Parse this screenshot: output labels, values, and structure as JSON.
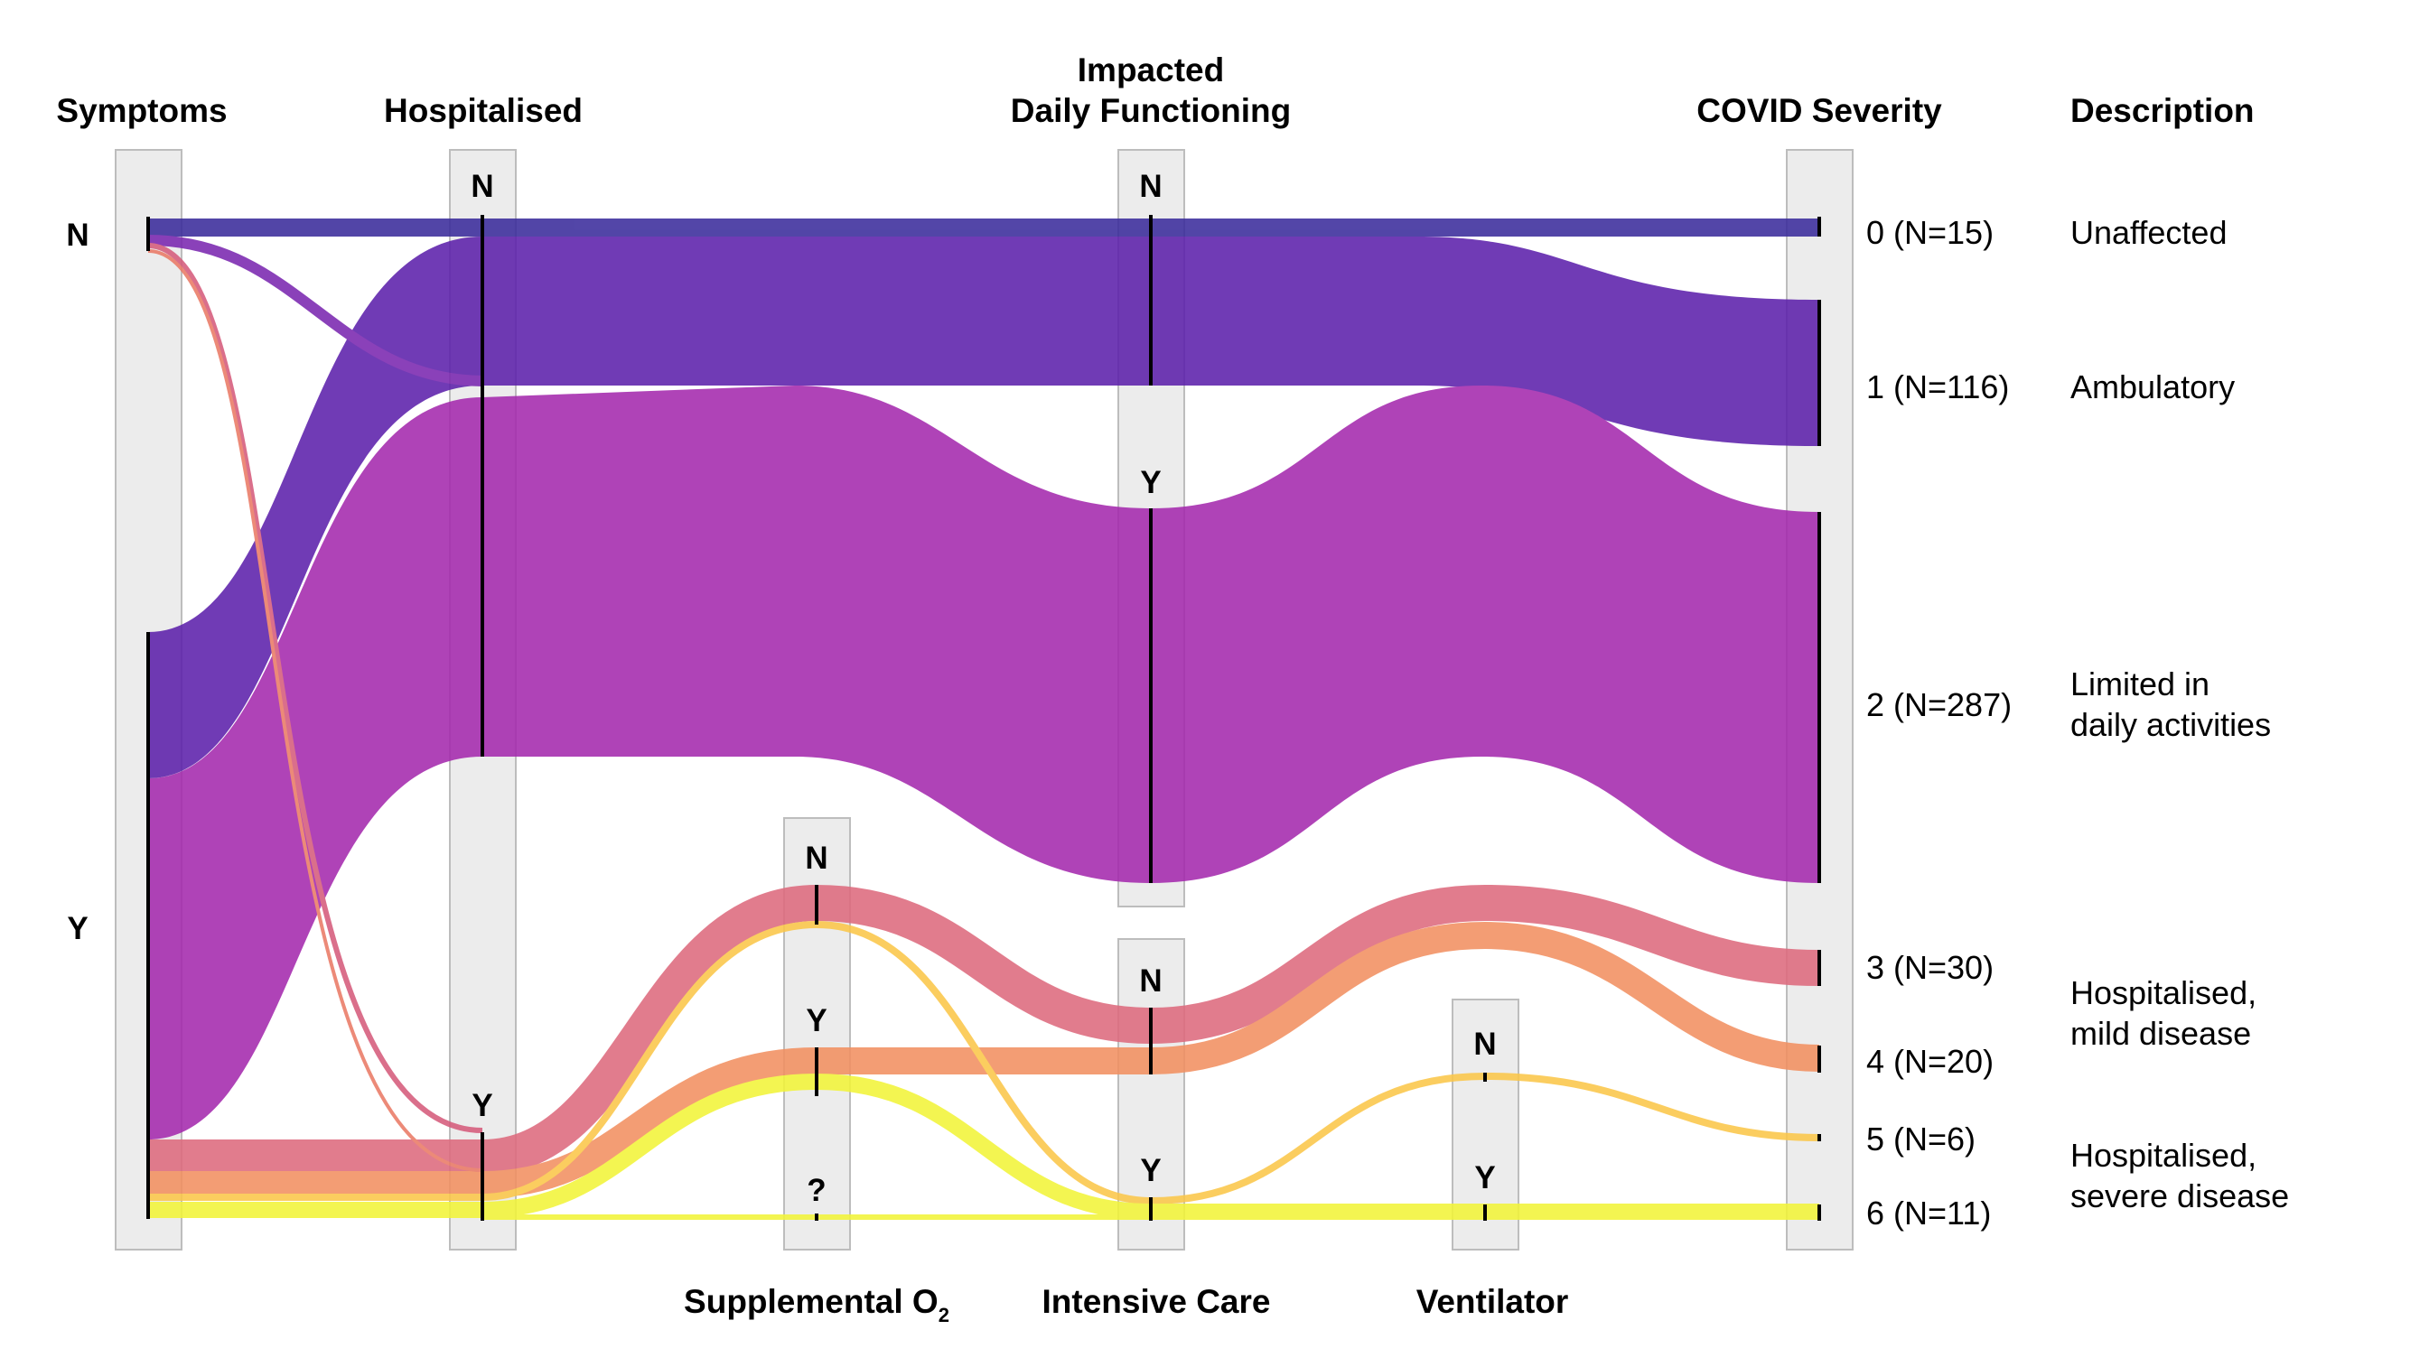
{
  "headers": {
    "symptoms": "Symptoms",
    "hospitalised": "Hospitalised",
    "impacted_line1": "Impacted",
    "impacted_line2": "Daily Functioning",
    "severity": "COVID Severity",
    "description": "Description",
    "supplemental": "Supplemental O",
    "supplemental_sub": "2",
    "intensive_care": "Intensive Care",
    "ventilator": "Ventilator"
  },
  "nodes": {
    "symptoms_n": "N",
    "symptoms_y": "Y",
    "hosp_n": "N",
    "hosp_y": "Y",
    "o2_n": "N",
    "o2_y": "Y",
    "o2_unknown": "?",
    "impact_n": "N",
    "impact_y": "Y",
    "icu_n": "N",
    "icu_y": "Y",
    "vent_n": "N",
    "vent_y": "Y"
  },
  "severity_levels": [
    {
      "label": "0 (N=15)",
      "description": [
        "Unaffected"
      ],
      "color": "#3b2c9c"
    },
    {
      "label": "1 (N=116)",
      "description": [
        "Ambulatory"
      ],
      "color": "#5d21ab"
    },
    {
      "label": "2 (N=287)",
      "description": [
        "Limited in",
        "daily activities"
      ],
      "color": "#a52aae"
    },
    {
      "label": "3 (N=30)",
      "description": [
        "Hospitalised,",
        "mild disease"
      ],
      "color": "#de6b7e"
    },
    {
      "label": "4 (N=20)",
      "description": [],
      "color": "#f29061"
    },
    {
      "label": "5 (N=6)",
      "description": [
        "Hospitalised,",
        "severe disease"
      ],
      "color": "#fbc74a"
    },
    {
      "label": "6 (N=11)",
      "description": [],
      "color": "#f2f43a"
    }
  ]
}
